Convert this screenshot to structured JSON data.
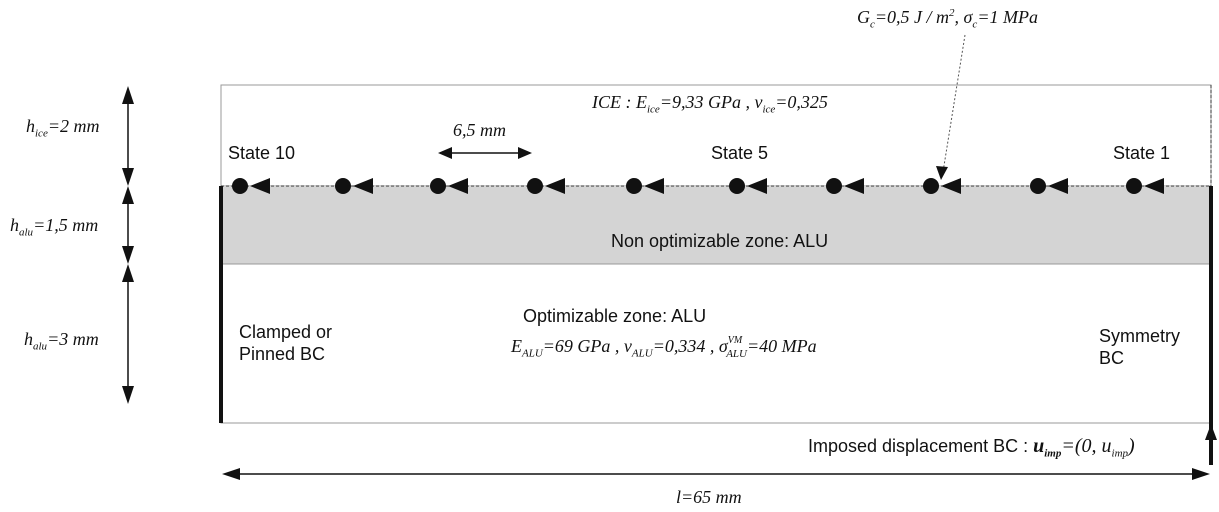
{
  "cohesive": {
    "Gc_text": "G",
    "Gc_sub": "c",
    "Gc_rest": "=0,5 J / m",
    "Gc_sup": "2",
    "sigma_text": ", σ",
    "sigma_sub": "c",
    "sigma_rest": "=1 MPa"
  },
  "ice": {
    "prefix": "ICE : E",
    "E_sub": "ice",
    "E_rest": "=9,33 GPa , ν",
    "nu_sub": "ice",
    "nu_rest": "=0,325"
  },
  "dims": {
    "h_ice": {
      "sym": "h",
      "sub": "ice",
      "val": "=2 mm"
    },
    "h_alu_top": {
      "sym": "h",
      "sub": "alu",
      "val": "=1,5 mm"
    },
    "h_alu_bottom": {
      "sym": "h",
      "sub": "alu",
      "val": "=3 mm"
    },
    "spacing": "6,5 mm",
    "length": "l=65 mm"
  },
  "states": {
    "left": "State 10",
    "mid": "State 5",
    "right": "State 1"
  },
  "zones": {
    "non_optimizable": "Non optimizable zone: ALU",
    "optimizable": "Optimizable zone: ALU"
  },
  "alu_props": {
    "E_sym": "E",
    "E_sub": "ALU",
    "E_rest": "=69 GPa , ν",
    "nu_sub": "ALU",
    "nu_rest": "=0,334 , σ",
    "sig_sup": "VM",
    "sig_sub": "ALU",
    "sig_rest": "=40 MPa"
  },
  "bc": {
    "left_line1": "Clamped or",
    "left_line2": "Pinned BC",
    "right_line1": "Symmetry",
    "right_line2": "BC",
    "imposed_prefix": "Imposed displacement BC :",
    "imposed_u": "u",
    "imposed_u_sub": "imp",
    "imposed_rest": "=(0, u",
    "imposed_rest_sub": "imp",
    "imposed_close": ")"
  },
  "colors": {
    "alu_band": "#d4d4d4",
    "line": "#111111",
    "frame": "#888888"
  }
}
